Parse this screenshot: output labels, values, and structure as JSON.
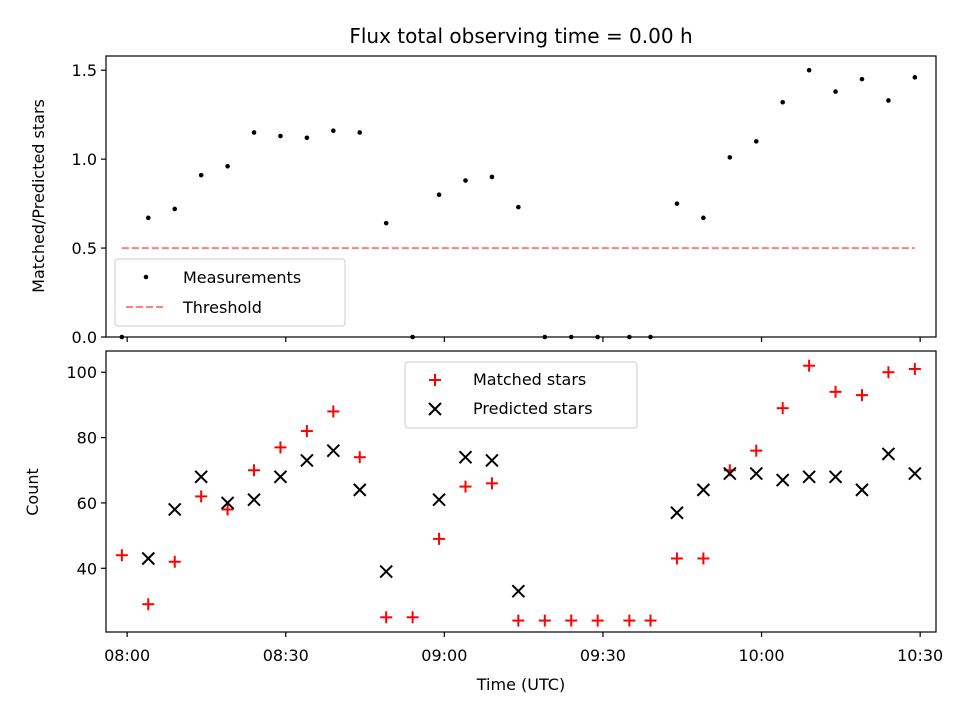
{
  "chart_data": [
    {
      "type": "scatter",
      "title": "Flux total observing time = 0.00 h",
      "xlabel": "",
      "ylabel": "Matched/Predicted stars",
      "ylim": [
        0,
        1.58
      ],
      "yticks": [
        "0.0",
        "0.5",
        "1.0",
        "1.5"
      ],
      "ytick_values": [
        0,
        0.5,
        1.0,
        1.5
      ],
      "legend_position": "lower-left",
      "series": [
        {
          "name": "Measurements",
          "color": "#000000",
          "marker": "dot",
          "x": [
            "07:59",
            "08:04",
            "08:09",
            "08:14",
            "08:19",
            "08:24",
            "08:29",
            "08:34",
            "08:39",
            "08:44",
            "08:49",
            "08:54",
            "08:59",
            "09:04",
            "09:09",
            "09:14",
            "09:19",
            "09:24",
            "09:29",
            "09:35",
            "09:39",
            "09:44",
            "09:49",
            "09:54",
            "09:59",
            "10:04",
            "10:09",
            "10:14",
            "10:19",
            "10:24",
            "10:29"
          ],
          "values": [
            0,
            0.67,
            0.72,
            0.91,
            0.96,
            1.15,
            1.13,
            1.12,
            1.16,
            1.15,
            0.64,
            0,
            0.8,
            0.88,
            0.9,
            0.73,
            0,
            0,
            0,
            0,
            0,
            0.75,
            0.67,
            1.01,
            1.1,
            1.32,
            1.5,
            1.38,
            1.45,
            1.33,
            1.46
          ]
        },
        {
          "name": "Threshold",
          "color": "#ff7f7f",
          "marker": "dashed-line",
          "x": [
            "07:59",
            "10:29"
          ],
          "values": [
            0.5,
            0.5
          ]
        }
      ]
    },
    {
      "type": "scatter",
      "title": "",
      "xlabel": "Time (UTC)",
      "ylabel": "Count",
      "ylim": [
        20.5,
        106.5
      ],
      "yticks": [
        "40",
        "60",
        "80",
        "100"
      ],
      "ytick_values": [
        40,
        60,
        80,
        100
      ],
      "xlim": [
        "07:56",
        "10:33"
      ],
      "xticks": [
        "08:00",
        "08:30",
        "09:00",
        "09:30",
        "10:00",
        "10:30"
      ],
      "legend_position": "upper-center",
      "series": [
        {
          "name": "Matched stars",
          "color": "#ff0000",
          "marker": "plus",
          "x": [
            "07:59",
            "08:04",
            "08:09",
            "08:14",
            "08:19",
            "08:24",
            "08:29",
            "08:34",
            "08:39",
            "08:44",
            "08:49",
            "08:54",
            "08:59",
            "09:04",
            "09:09",
            "09:14",
            "09:19",
            "09:24",
            "09:29",
            "09:35",
            "09:39",
            "09:44",
            "09:49",
            "09:54",
            "09:59",
            "10:04",
            "10:09",
            "10:14",
            "10:19",
            "10:24",
            "10:29"
          ],
          "values": [
            44,
            29,
            42,
            62,
            58,
            70,
            77,
            82,
            88,
            74,
            25,
            25,
            49,
            65,
            66,
            24,
            24,
            24,
            24,
            24,
            24,
            43,
            43,
            70,
            76,
            89,
            102,
            94,
            93,
            100,
            101
          ]
        },
        {
          "name": "Predicted stars",
          "color": "#000000",
          "marker": "x",
          "x": [
            "08:04",
            "08:09",
            "08:14",
            "08:19",
            "08:24",
            "08:29",
            "08:34",
            "08:39",
            "08:44",
            "08:49",
            "08:59",
            "09:04",
            "09:09",
            "09:14",
            "09:44",
            "09:49",
            "09:54",
            "09:59",
            "10:04",
            "10:09",
            "10:14",
            "10:19",
            "10:24",
            "10:29"
          ],
          "values": [
            43,
            58,
            68,
            60,
            61,
            68,
            73,
            76,
            64,
            39,
            61,
            74,
            73,
            33,
            57,
            64,
            69,
            69,
            67,
            68,
            68,
            64,
            75,
            69
          ]
        }
      ]
    }
  ]
}
